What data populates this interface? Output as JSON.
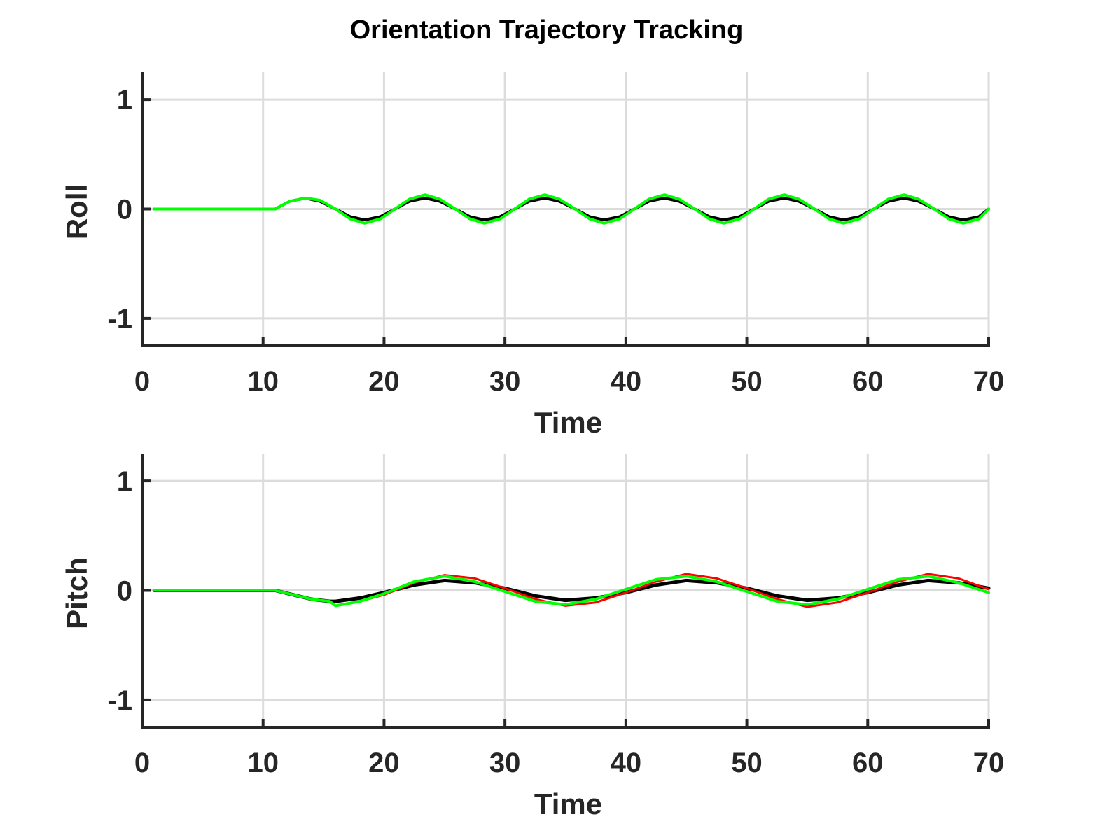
{
  "figure": {
    "title": "Orientation Trajectory Tracking"
  },
  "colors": {
    "axis": "#262626",
    "grid": "#dcdcdc",
    "reference": "#000000",
    "red_series": "#ff0000",
    "green_series": "#00ff00"
  },
  "chart_data": [
    {
      "type": "line",
      "title": "",
      "xlabel": "Time",
      "ylabel": "Roll",
      "xlim": [
        0,
        70
      ],
      "ylim": [
        -1.25,
        1.25
      ],
      "xticks": [
        0,
        10,
        20,
        30,
        40,
        50,
        60,
        70
      ],
      "xtick_labels": [
        "0",
        "10",
        "20",
        "30",
        "40",
        "50",
        "60",
        "70"
      ],
      "yticks": [
        -1,
        0,
        1
      ],
      "ytick_labels": [
        "-1",
        "0",
        "1"
      ],
      "grid": true,
      "legend": "none",
      "series": [
        {
          "color": "#000000",
          "width": 4,
          "x": [
            1,
            11,
            12.2,
            13.5,
            14.7,
            16,
            17.2,
            18.4,
            19.7,
            20.9,
            22.1,
            23.4,
            24.6,
            25.9,
            27.1,
            28.3,
            29.6,
            30.8,
            32,
            33.3,
            34.5,
            35.8,
            37,
            38.2,
            39.5,
            40.7,
            41.9,
            43.2,
            44.4,
            45.7,
            46.9,
            48.1,
            49.4,
            50.6,
            51.8,
            53.1,
            54.3,
            55.6,
            56.8,
            58,
            59.3,
            60.5,
            61.7,
            63,
            64.2,
            65.5,
            66.7,
            67.9,
            69.2,
            70
          ],
          "y": [
            0,
            0,
            0.07,
            0.1,
            0.07,
            0,
            -0.07,
            -0.1,
            -0.07,
            0,
            0.07,
            0.1,
            0.07,
            0,
            -0.07,
            -0.1,
            -0.07,
            0,
            0.07,
            0.1,
            0.07,
            0,
            -0.07,
            -0.1,
            -0.07,
            0,
            0.07,
            0.1,
            0.07,
            0,
            -0.07,
            -0.1,
            -0.07,
            0,
            0.07,
            0.1,
            0.07,
            0,
            -0.07,
            -0.1,
            -0.07,
            0,
            0.07,
            0.1,
            0.07,
            0,
            -0.07,
            -0.1,
            -0.07,
            0
          ]
        },
        {
          "color": "#ff0000",
          "width": 3,
          "x": [
            1,
            11,
            12.2,
            13.5,
            14.7,
            16,
            17.2,
            18.4,
            19.7,
            20.9,
            22.1,
            23.4,
            24.6,
            25.9,
            27.1,
            28.3,
            29.6,
            30.8,
            32,
            33.3,
            34.5,
            35.8,
            37,
            38.2,
            39.5,
            40.7,
            41.9,
            43.2,
            44.4,
            45.7,
            46.9,
            48.1,
            49.4,
            50.6,
            51.8,
            53.1,
            54.3,
            55.6,
            56.8,
            58,
            59.3,
            60.5,
            61.7,
            63,
            64.2,
            65.5,
            66.7,
            67.9,
            69.2,
            70
          ],
          "y": [
            0,
            0,
            0.07,
            0.1,
            0.08,
            0,
            -0.09,
            -0.13,
            -0.09,
            0,
            0.09,
            0.13,
            0.09,
            0,
            -0.09,
            -0.13,
            -0.09,
            0,
            0.09,
            0.13,
            0.09,
            0,
            -0.09,
            -0.13,
            -0.09,
            0,
            0.09,
            0.13,
            0.09,
            0,
            -0.09,
            -0.13,
            -0.09,
            0,
            0.09,
            0.13,
            0.09,
            0,
            -0.09,
            -0.13,
            -0.09,
            0,
            0.09,
            0.13,
            0.09,
            0,
            -0.09,
            -0.13,
            -0.09,
            0
          ]
        },
        {
          "color": "#00ff00",
          "width": 4,
          "x": [
            1,
            11,
            12.2,
            13.5,
            14.7,
            16,
            17.2,
            18.4,
            19.7,
            20.9,
            22.1,
            23.4,
            24.6,
            25.9,
            27.1,
            28.3,
            29.6,
            30.8,
            32,
            33.3,
            34.5,
            35.8,
            37,
            38.2,
            39.5,
            40.7,
            41.9,
            43.2,
            44.4,
            45.7,
            46.9,
            48.1,
            49.4,
            50.6,
            51.8,
            53.1,
            54.3,
            55.6,
            56.8,
            58,
            59.3,
            60.5,
            61.7,
            63,
            64.2,
            65.5,
            66.7,
            67.9,
            69.2,
            70
          ],
          "y": [
            0,
            0,
            0.07,
            0.1,
            0.08,
            0,
            -0.09,
            -0.13,
            -0.09,
            0,
            0.09,
            0.13,
            0.09,
            0,
            -0.09,
            -0.13,
            -0.09,
            0,
            0.09,
            0.13,
            0.09,
            0,
            -0.09,
            -0.13,
            -0.09,
            0,
            0.09,
            0.13,
            0.09,
            0,
            -0.09,
            -0.13,
            -0.09,
            0,
            0.09,
            0.13,
            0.09,
            0,
            -0.09,
            -0.13,
            -0.09,
            0,
            0.09,
            0.13,
            0.09,
            0,
            -0.09,
            -0.13,
            -0.09,
            0
          ]
        }
      ]
    },
    {
      "type": "line",
      "title": "",
      "xlabel": "Time",
      "ylabel": "Pitch",
      "xlim": [
        0,
        70
      ],
      "ylim": [
        -1.25,
        1.25
      ],
      "xticks": [
        0,
        10,
        20,
        30,
        40,
        50,
        60,
        70
      ],
      "xtick_labels": [
        "0",
        "10",
        "20",
        "30",
        "40",
        "50",
        "60",
        "70"
      ],
      "yticks": [
        -1,
        0,
        1
      ],
      "ytick_labels": [
        "-1",
        "0",
        "1"
      ],
      "grid": true,
      "legend": "none",
      "series": [
        {
          "color": "#000000",
          "width": 5,
          "x": [
            1,
            11,
            12.5,
            14,
            15.5,
            16,
            18,
            20,
            22.5,
            25,
            27.5,
            30,
            32.5,
            35,
            37.5,
            40,
            42.5,
            45,
            47.5,
            50,
            52.5,
            55,
            57.5,
            60,
            62.5,
            65,
            67.5,
            70
          ],
          "y": [
            0,
            0,
            -0.04,
            -0.08,
            -0.1,
            -0.1,
            -0.07,
            -0.02,
            0.05,
            0.09,
            0.07,
            0.02,
            -0.05,
            -0.09,
            -0.07,
            -0.02,
            0.05,
            0.09,
            0.07,
            0.02,
            -0.05,
            -0.09,
            -0.07,
            -0.02,
            0.05,
            0.09,
            0.07,
            0.02
          ]
        },
        {
          "color": "#ff0000",
          "width": 3,
          "x": [
            1,
            11,
            12.5,
            14,
            15.5,
            16,
            18,
            20,
            22.5,
            25,
            27.5,
            30,
            32.5,
            35,
            37.5,
            40,
            42.5,
            45,
            47.5,
            50,
            52.5,
            55,
            57.5,
            60,
            62.5,
            65,
            67.5,
            70
          ],
          "y": [
            0,
            0,
            -0.04,
            -0.08,
            -0.1,
            -0.14,
            -0.1,
            -0.04,
            0.07,
            0.14,
            0.11,
            0.02,
            -0.08,
            -0.14,
            -0.11,
            -0.02,
            0.08,
            0.15,
            0.11,
            0.02,
            -0.08,
            -0.15,
            -0.11,
            -0.02,
            0.08,
            0.15,
            0.11,
            0.01
          ]
        },
        {
          "color": "#00ff00",
          "width": 4,
          "x": [
            1,
            11,
            12.5,
            14,
            15.5,
            16,
            18,
            20,
            22.5,
            25,
            27.5,
            30,
            32.5,
            35,
            37.5,
            40,
            42.5,
            45,
            47.5,
            50,
            52.5,
            55,
            57.5,
            60,
            62.5,
            65,
            67.5,
            70
          ],
          "y": [
            0,
            0,
            -0.04,
            -0.08,
            -0.1,
            -0.14,
            -0.1,
            -0.03,
            0.08,
            0.13,
            0.08,
            -0.01,
            -0.1,
            -0.13,
            -0.08,
            0.01,
            0.1,
            0.13,
            0.08,
            -0.01,
            -0.1,
            -0.13,
            -0.08,
            0.01,
            0.1,
            0.13,
            0.07,
            -0.02
          ]
        }
      ]
    }
  ]
}
